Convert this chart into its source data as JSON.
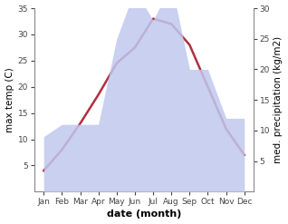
{
  "months": [
    "Jan",
    "Feb",
    "Mar",
    "Apr",
    "May",
    "Jun",
    "Jul",
    "Aug",
    "Sep",
    "Oct",
    "Nov",
    "Dec"
  ],
  "temperature": [
    4.0,
    8.0,
    13.0,
    18.5,
    24.5,
    27.5,
    33.0,
    32.0,
    28.0,
    20.0,
    12.0,
    7.0
  ],
  "precipitation": [
    9,
    11,
    11,
    11,
    25,
    33,
    28,
    34,
    20,
    20,
    12,
    12
  ],
  "temp_color": "#b03040",
  "precip_fill_color": "#c0c8ee",
  "ylabel_left": "max temp (C)",
  "ylabel_right": "med. precipitation (kg/m2)",
  "xlabel": "date (month)",
  "ylim_left": [
    0,
    35
  ],
  "ylim_right": [
    0,
    30
  ],
  "yticks_left": [
    5,
    10,
    15,
    20,
    25,
    30,
    35
  ],
  "yticks_right": [
    5,
    10,
    15,
    20,
    25,
    30
  ],
  "figsize": [
    3.18,
    2.47
  ],
  "dpi": 100,
  "axis_fontsize": 7.5,
  "tick_fontsize": 6.5,
  "xlabel_fontsize": 8,
  "linewidth": 1.8
}
